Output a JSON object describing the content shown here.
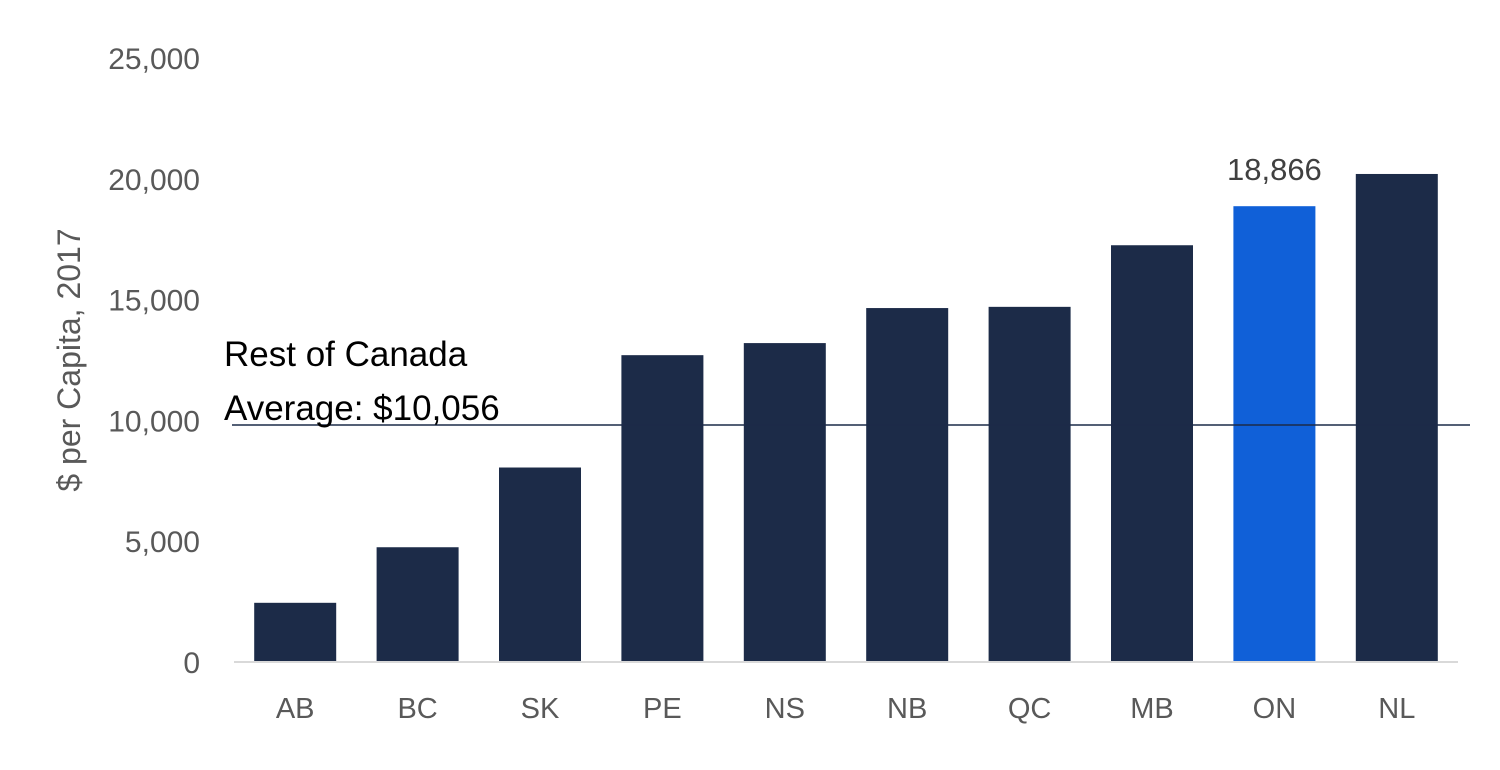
{
  "chart_data": {
    "type": "bar",
    "categories": [
      "AB",
      "BC",
      "SK",
      "PE",
      "NS",
      "NB",
      "QC",
      "MB",
      "ON",
      "NL"
    ],
    "values": [
      2450,
      4750,
      8050,
      12700,
      13200,
      14650,
      14700,
      17250,
      18866,
      20200
    ],
    "highlight_category": "ON",
    "data_labels": [
      {
        "category": "ON",
        "text": "18,866"
      }
    ],
    "title": "",
    "xlabel": "",
    "ylabel": "$ per Capita, 2017",
    "ylim": [
      0,
      25000
    ],
    "yticks": [
      0,
      5000,
      10000,
      15000,
      20000,
      25000
    ],
    "ytick_labels": [
      "0",
      "5,000",
      "10,000",
      "15,000",
      "20,000",
      "25,000"
    ],
    "grid": false,
    "legend": "none",
    "reference_line": {
      "value": 10056,
      "label_line1": "Rest of Canada",
      "label_line2": "Average: $10,056"
    },
    "colors": {
      "bar": "#1c2b48",
      "highlight": "#1060d8",
      "axis": "#d9d9d9",
      "reference": "#1c2b48"
    }
  }
}
